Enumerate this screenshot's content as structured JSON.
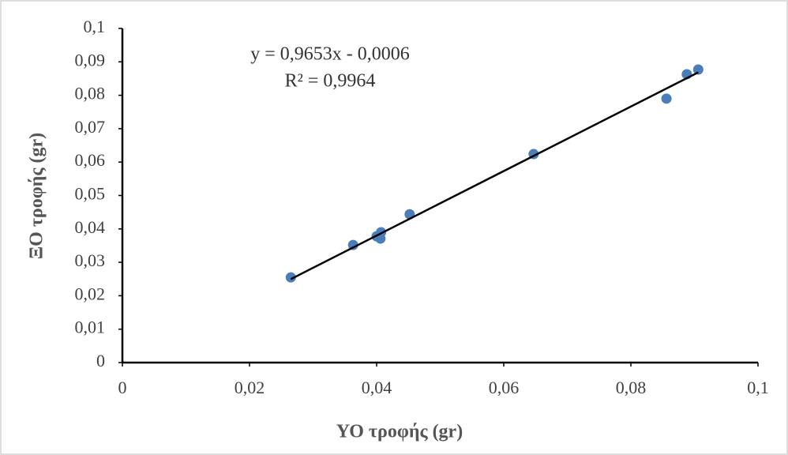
{
  "chart_data": {
    "type": "scatter",
    "x_label": "ΥΟ τροφής (gr)",
    "y_label": "ΞΟ τροφής (gr)",
    "series": [
      {
        "name": "ΞΟ τροφής",
        "color": "#4a7ebb",
        "x": [
          0.0265,
          0.0363,
          0.04,
          0.0407,
          0.0406,
          0.0452,
          0.0647,
          0.0856,
          0.0888,
          0.0906
        ],
        "values": [
          0.0255,
          0.0352,
          0.0378,
          0.039,
          0.0371,
          0.0444,
          0.0624,
          0.079,
          0.0863,
          0.0877
        ]
      }
    ],
    "trendline": {
      "slope": 0.9653,
      "intercept": -0.0006,
      "equation": "y = 0,9653x - 0,0006",
      "r2": "R² = 0,9964"
    },
    "xlim": [
      0,
      0.1
    ],
    "xticks": [
      0,
      {
        "value": 0.02,
        "label": "0,02"
      },
      {
        "value": 0.04,
        "label": "0,04"
      },
      {
        "value": 0.06,
        "label": "0,06"
      },
      {
        "value": 0.08,
        "label": "0,08"
      },
      {
        "value": 0.1,
        "label": "0,1"
      }
    ],
    "ylim": [
      0,
      0.1
    ],
    "yticks": [
      0,
      {
        "value": 0.01,
        "label": "0,01"
      },
      {
        "value": 0.02,
        "label": "0,02"
      },
      {
        "value": 0.03,
        "label": "0,03"
      },
      {
        "value": 0.04,
        "label": "0,04"
      },
      {
        "value": 0.05,
        "label": "0,05"
      },
      {
        "value": 0.06,
        "label": "0,06"
      },
      {
        "value": 0.07,
        "label": "0,07"
      },
      {
        "value": 0.08,
        "label": "0,08"
      },
      {
        "value": 0.09,
        "label": "0,09"
      },
      {
        "value": 0.1,
        "label": "0,1"
      }
    ],
    "grid": false
  }
}
